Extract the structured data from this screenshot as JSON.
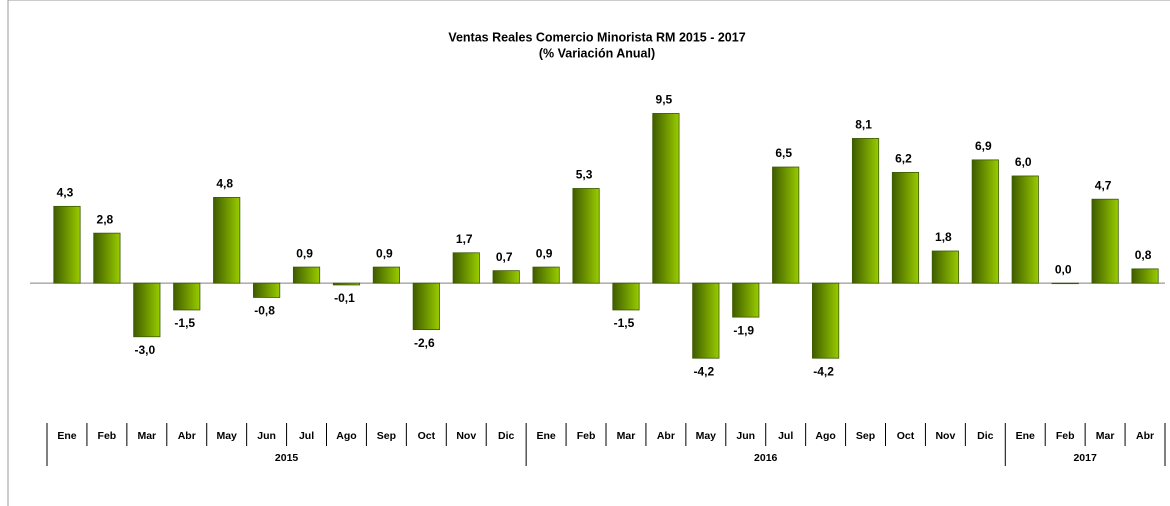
{
  "chart_data": {
    "type": "bar",
    "title": "Ventas Reales Comercio Minorista RM 2015 - 2017",
    "subtitle": "(% Variación Anual)",
    "groups": [
      {
        "label": "2015",
        "categories": [
          "Ene",
          "Feb",
          "Mar",
          "Abr",
          "May",
          "Jun",
          "Jul",
          "Ago",
          "Sep",
          "Oct",
          "Nov",
          "Dic"
        ]
      },
      {
        "label": "2016",
        "categories": [
          "Ene",
          "Feb",
          "Mar",
          "Abr",
          "May",
          "Jun",
          "Jul",
          "Ago",
          "Sep",
          "Oct",
          "Nov",
          "Dic"
        ]
      },
      {
        "label": "2017",
        "categories": [
          "Ene",
          "Feb",
          "Mar",
          "Abr"
        ]
      }
    ],
    "values": [
      4.3,
      2.8,
      -3.0,
      -1.5,
      4.8,
      -0.8,
      0.9,
      -0.1,
      0.9,
      -2.6,
      1.7,
      0.7,
      0.9,
      5.3,
      -1.5,
      9.5,
      -4.2,
      -1.9,
      6.5,
      -4.2,
      8.1,
      6.2,
      1.8,
      6.9,
      6.0,
      0.0,
      4.7,
      0.8
    ],
    "value_labels": [
      "4,3",
      "2,8",
      "-3,0",
      "-1,5",
      "4,8",
      "-0,8",
      "0,9",
      "-0,1",
      "0,9",
      "-2,6",
      "1,7",
      "0,7",
      "0,9",
      "5,3",
      "-1,5",
      "9,5",
      "-4,2",
      "-1,9",
      "6,5",
      "-4,2",
      "8,1",
      "6,2",
      "1,8",
      "6,9",
      "6,0",
      "0,0",
      "4,7",
      "0,8"
    ],
    "color": "#99cc00",
    "ylim": [
      -5,
      10
    ]
  }
}
